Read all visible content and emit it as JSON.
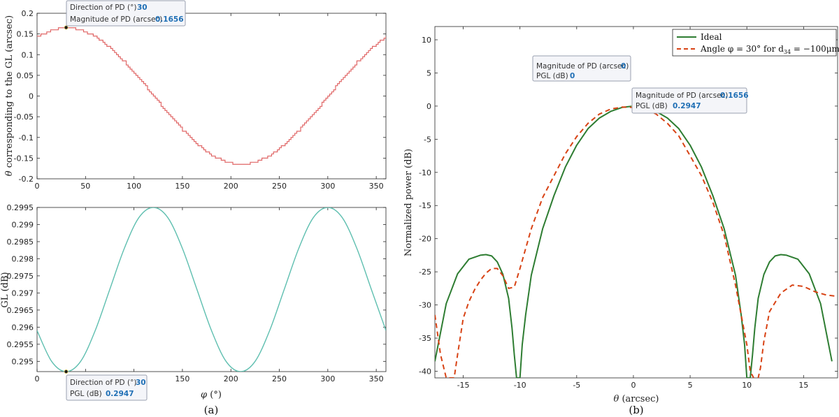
{
  "captions": {
    "a": "(a)",
    "b": "(b)"
  },
  "chart_data": [
    {
      "id": "a-top",
      "type": "line",
      "xlabel": "",
      "ylabel": "θ corresponding to the GL (arcsec)",
      "xlim": [
        0,
        360
      ],
      "ylim": [
        -0.2,
        0.2
      ],
      "xticks": [
        0,
        50,
        100,
        150,
        200,
        250,
        300,
        350
      ],
      "yticks": [
        -0.2,
        -0.15,
        -0.1,
        -0.05,
        0,
        0.05,
        0.1,
        0.15,
        0.2
      ],
      "ytick_labels": [
        "-0.2",
        "-0.15",
        "-0.1",
        "-0.05",
        "0",
        "0.05",
        "0.1",
        "0.15",
        "0.2"
      ],
      "grid": false,
      "color": "#e06666",
      "style": "staircase",
      "series": [
        {
          "x": [
            0,
            15,
            30,
            45,
            60,
            75,
            90,
            105,
            120,
            135,
            150,
            165,
            180,
            195,
            210,
            225,
            240,
            255,
            270,
            285,
            300,
            315,
            330,
            345,
            360
          ],
          "y": [
            0.1434,
            0.16,
            0.1656,
            0.16,
            0.1434,
            0.1171,
            0.0828,
            0.0429,
            0,
            -0.0429,
            -0.0828,
            -0.1171,
            -0.1434,
            -0.16,
            -0.1656,
            -0.16,
            -0.1434,
            -0.1171,
            -0.0828,
            -0.0429,
            0,
            0.0429,
            0.0828,
            0.1171,
            0.1434
          ]
        }
      ],
      "datatip": {
        "rows": [
          {
            "label": "Direction of PD (°)",
            "value": "30"
          },
          {
            "label": "Magnitude of PD (arcsec)",
            "value": "0.1656"
          }
        ],
        "x": 30,
        "y": 0.1656
      }
    },
    {
      "id": "a-bottom",
      "type": "line",
      "xlabel": "φ (°)",
      "ylabel": "GL (dB)",
      "xlim": [
        0,
        360
      ],
      "ylim": [
        0.2947,
        0.2995
      ],
      "xticks": [
        0,
        50,
        100,
        150,
        200,
        250,
        300,
        350
      ],
      "yticks": [
        0.295,
        0.2955,
        0.296,
        0.2965,
        0.297,
        0.2975,
        0.298,
        0.2985,
        0.299,
        0.2995
      ],
      "ytick_labels": [
        "0.295",
        "0.2955",
        "0.296",
        "0.2965",
        "0.297",
        "0.2975",
        "0.298",
        "0.2985",
        "0.299",
        "0.2995"
      ],
      "grid": false,
      "color": "#5fbfb0",
      "series": [
        {
          "x": [
            0,
            15,
            30,
            45,
            60,
            75,
            90,
            105,
            120,
            135,
            150,
            165,
            180,
            195,
            210,
            225,
            240,
            255,
            270,
            285,
            300,
            315,
            330,
            345,
            360
          ],
          "y": [
            0.2959,
            0.295,
            0.2947,
            0.295,
            0.2959,
            0.2971,
            0.2983,
            0.2992,
            0.2995,
            0.2992,
            0.2983,
            0.2971,
            0.2959,
            0.295,
            0.2947,
            0.295,
            0.2959,
            0.2971,
            0.2983,
            0.2992,
            0.2995,
            0.2992,
            0.2983,
            0.2971,
            0.2959
          ]
        }
      ],
      "datatip": {
        "rows": [
          {
            "label": "Direction of PD (°)",
            "value": "30"
          },
          {
            "label": "PGL (dB)",
            "value": "0.2947"
          }
        ],
        "x": 30,
        "y": 0.2947
      }
    },
    {
      "id": "b",
      "type": "line",
      "xlabel": "θ (arcsec)",
      "ylabel": "Normalized power (dB)",
      "xlim": [
        -17.5,
        18
      ],
      "ylim": [
        -41,
        12
      ],
      "xticks": [
        -15,
        -10,
        -5,
        0,
        5,
        10,
        15
      ],
      "xtick_labels": [
        "-15",
        "-10",
        "-5",
        "0",
        "5",
        "10",
        "15"
      ],
      "yticks": [
        -40,
        -35,
        -30,
        -25,
        -20,
        -15,
        -10,
        -5,
        0,
        5,
        10
      ],
      "ytick_labels": [
        "-40",
        "-35",
        "-30",
        "-25",
        "-20",
        "-15",
        "-10",
        "-5",
        "0",
        "5",
        "10"
      ],
      "grid": false,
      "legend_position": "top-right",
      "series": [
        {
          "name": "Ideal",
          "color": "#2e7d32",
          "dash": "solid",
          "x": [
            -17.5,
            -16.5,
            -15.5,
            -14.5,
            -13.5,
            -13,
            -12.5,
            -12,
            -11.5,
            -11,
            -10.7,
            -10.5,
            -10.3,
            -10.1,
            -10,
            -9.8,
            -9.5,
            -9,
            -8,
            -7,
            -6,
            -5,
            -4,
            -3,
            -2,
            -1,
            0,
            1,
            2,
            3,
            4,
            5,
            6,
            7,
            8,
            9,
            9.5,
            9.8,
            10,
            10.1,
            10.3,
            10.5,
            10.7,
            11,
            11.5,
            12,
            12.5,
            13,
            13.5,
            14.5,
            15.5,
            16.5,
            17.5
          ],
          "y": [
            -38.5,
            -29.8,
            -25.3,
            -23.1,
            -22.5,
            -22.4,
            -22.6,
            -23.5,
            -25.4,
            -29,
            -33.5,
            -37.5,
            -41,
            -41,
            -41,
            -36,
            -31.5,
            -25.5,
            -18.5,
            -13.5,
            -9.2,
            -5.9,
            -3.4,
            -1.8,
            -0.8,
            -0.2,
            0,
            -0.2,
            -0.8,
            -1.8,
            -3.4,
            -5.9,
            -9.2,
            -13.5,
            -18.5,
            -25.5,
            -31.5,
            -36,
            -41,
            -41,
            -41,
            -37.5,
            -33.5,
            -29,
            -25.4,
            -23.5,
            -22.6,
            -22.4,
            -22.5,
            -23.1,
            -25.3,
            -29.8,
            -38.5
          ]
        },
        {
          "name": "Angle φ = 30° for d34 = −100μm",
          "color": "#d84315",
          "dash": "dashed",
          "x": [
            -17.5,
            -17,
            -16.5,
            -16.2,
            -16,
            -15.8,
            -15.5,
            -15,
            -14.5,
            -14,
            -13.5,
            -13,
            -12.5,
            -12,
            -11.5,
            -11,
            -10.5,
            -10,
            -9.5,
            -9,
            -8,
            -7,
            -6,
            -5,
            -4,
            -3,
            -2,
            -1,
            0,
            1,
            2,
            3,
            4,
            5,
            6,
            7,
            8,
            9,
            9.5,
            10,
            10.3,
            10.6,
            10.9,
            11,
            11.2,
            11.5,
            12,
            13,
            14,
            15,
            16,
            17,
            18
          ],
          "y": [
            -31.5,
            -37.5,
            -41,
            -41,
            -41,
            -41,
            -37.5,
            -32,
            -29.5,
            -27.7,
            -26.3,
            -25.2,
            -24.5,
            -24.5,
            -25.6,
            -27.5,
            -27.3,
            -24.5,
            -21.5,
            -18.5,
            -13.8,
            -10.5,
            -7.2,
            -4.6,
            -2.6,
            -1.2,
            -0.45,
            -0.15,
            -0.2,
            -0.4,
            -1.2,
            -2.6,
            -4.5,
            -7.5,
            -10.5,
            -14.5,
            -19.5,
            -27,
            -31.5,
            -36,
            -40,
            -41,
            -41,
            -41,
            -39.5,
            -35.5,
            -31,
            -28.2,
            -27,
            -27.2,
            -28,
            -28.5,
            -28.7
          ]
        }
      ],
      "legend": [
        {
          "text": "Ideal"
        },
        {
          "text": "Angle φ = 30° for d",
          "sub": "34",
          "tail": " = −100μm"
        }
      ],
      "datatips": [
        {
          "rows": [
            {
              "label": "Magnitude of PD (arcsec)",
              "value": "0"
            },
            {
              "label": "PGL (dB)",
              "value": "0"
            }
          ],
          "x": 0,
          "y": 0,
          "anchor": "above-left"
        },
        {
          "rows": [
            {
              "label": "Magnitude of PD (arcsec)",
              "value": "0.1656"
            },
            {
              "label": "PGL (dB)",
              "value": "0.2947"
            }
          ],
          "x": 0.1656,
          "y": -0.2947,
          "anchor": "below-right"
        }
      ]
    }
  ]
}
